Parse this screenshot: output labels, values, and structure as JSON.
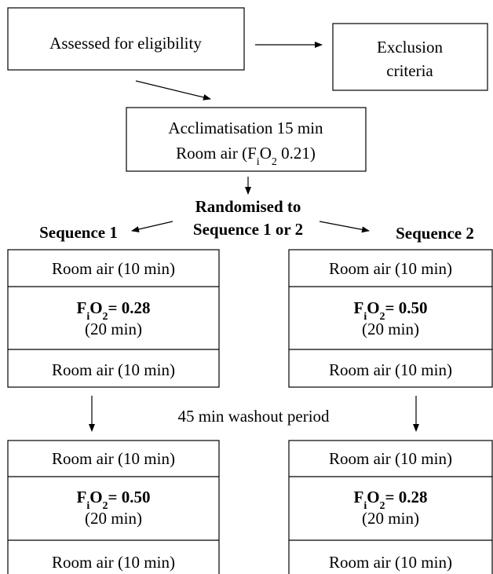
{
  "nodes": {
    "assessed": "Assessed for eligibility",
    "exclusion": [
      "Exclusion",
      "criteria"
    ],
    "acclimatisation": [
      "Acclimatisation 15 min",
      [
        "Room air (F",
        "i",
        "O",
        "2",
        " 0.21)"
      ]
    ],
    "randomisation": [
      "Randomised to",
      "Sequence 1 or 2"
    ],
    "washout": "45 min washout period",
    "sequence_1": {
      "label": "Sequence 1",
      "period_1": {
        "before": "Room air (10 min)",
        "intervention": [
          "F",
          "i",
          "O",
          "2",
          "= 0.28"
        ],
        "duration": "(20 min)",
        "after": "Room air (10 min)"
      },
      "period_2": {
        "before": "Room air (10 min)",
        "intervention": [
          "F",
          "i",
          "O",
          "2",
          "= 0.50"
        ],
        "duration": "(20 min)",
        "after": "Room air (10 min)"
      }
    },
    "sequence_2": {
      "label": "Sequence 2",
      "period_1": {
        "before": "Room air (10 min)",
        "intervention": [
          "F",
          "i",
          "O",
          "2",
          "= 0.50"
        ],
        "duration": "(20 min)",
        "after": "Room air (10 min)"
      },
      "period_2": {
        "before": "Room air (10 min)",
        "intervention": [
          "F",
          "i",
          "O",
          "2",
          "= 0.28"
        ],
        "duration": "(20 min)",
        "after": "Room air (10 min)"
      }
    }
  }
}
